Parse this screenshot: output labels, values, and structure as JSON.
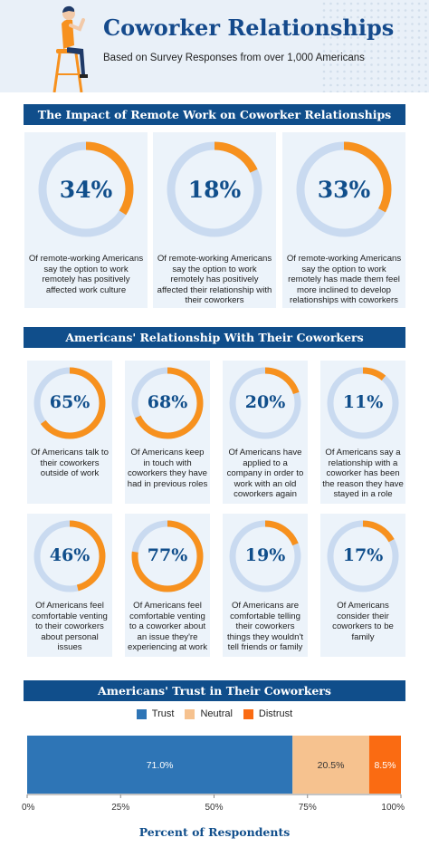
{
  "header": {
    "title": "Coworker Relationships",
    "subtitle": "Based on Survey Responses from over 1,000 Americans"
  },
  "section1": {
    "title": "The Impact of Remote Work on Coworker Relationships",
    "cards": [
      {
        "value": 34,
        "label": "34%",
        "caption": "Of remote-working Americans say the option to work remotely has positively affected work culture"
      },
      {
        "value": 18,
        "label": "18%",
        "caption": "Of remote-working Americans say the option to work remotely has positively affected their relationship with their coworkers"
      },
      {
        "value": 33,
        "label": "33%",
        "caption": "Of remote-working Americans say the option to work remotely has made them feel more inclined to develop relationships with coworkers"
      }
    ]
  },
  "section2": {
    "title": "Americans' Relationship With Their Coworkers",
    "cards": [
      {
        "value": 65,
        "label": "65%",
        "caption": "Of Americans talk to their coworkers outside of work"
      },
      {
        "value": 68,
        "label": "68%",
        "caption": "Of Americans keep in touch with coworkers they have had in previous roles"
      },
      {
        "value": 20,
        "label": "20%",
        "caption": "Of Americans have applied to a company in order to work with an old coworkers again"
      },
      {
        "value": 11,
        "label": "11%",
        "caption": "Of Americans say a relationship with a coworker has been the reason they have stayed in a role"
      },
      {
        "value": 46,
        "label": "46%",
        "caption": "Of Americans feel comfortable venting to their coworkers about personal issues"
      },
      {
        "value": 77,
        "label": "77%",
        "caption": "Of Americans feel comfortable venting to a coworker about an issue they're experiencing at work"
      },
      {
        "value": 19,
        "label": "19%",
        "caption": "Of Americans are comfortable telling their coworkers things they wouldn't tell friends or family"
      },
      {
        "value": 17,
        "label": "17%",
        "caption": "Of Americans consider their coworkers to be family"
      }
    ]
  },
  "section3": {
    "title": "Americans' Trust in Their Coworkers"
  },
  "colors": {
    "navy": "#104e8b",
    "orange": "#f7911e",
    "ring": "#c9daf0",
    "trust": "#2e75b6",
    "neutral": "#f6c28f",
    "distrust": "#fa6b12"
  },
  "chart_data": {
    "type": "bar",
    "orientation": "horizontal-stacked",
    "title": "Americans' Trust in Their Coworkers",
    "xlabel": "Percent of Respondents",
    "xlim": [
      0,
      100
    ],
    "xticks": [
      "0%",
      "25%",
      "50%",
      "75%",
      "100%"
    ],
    "legend_position": "top",
    "series": [
      {
        "name": "Trust",
        "value": 71.0,
        "label": "71.0%",
        "color": "#2e75b6"
      },
      {
        "name": "Neutral",
        "value": 20.5,
        "label": "20.5%",
        "color": "#f6c28f"
      },
      {
        "name": "Distrust",
        "value": 8.5,
        "label": "8.5%",
        "color": "#fa6b12"
      }
    ]
  }
}
